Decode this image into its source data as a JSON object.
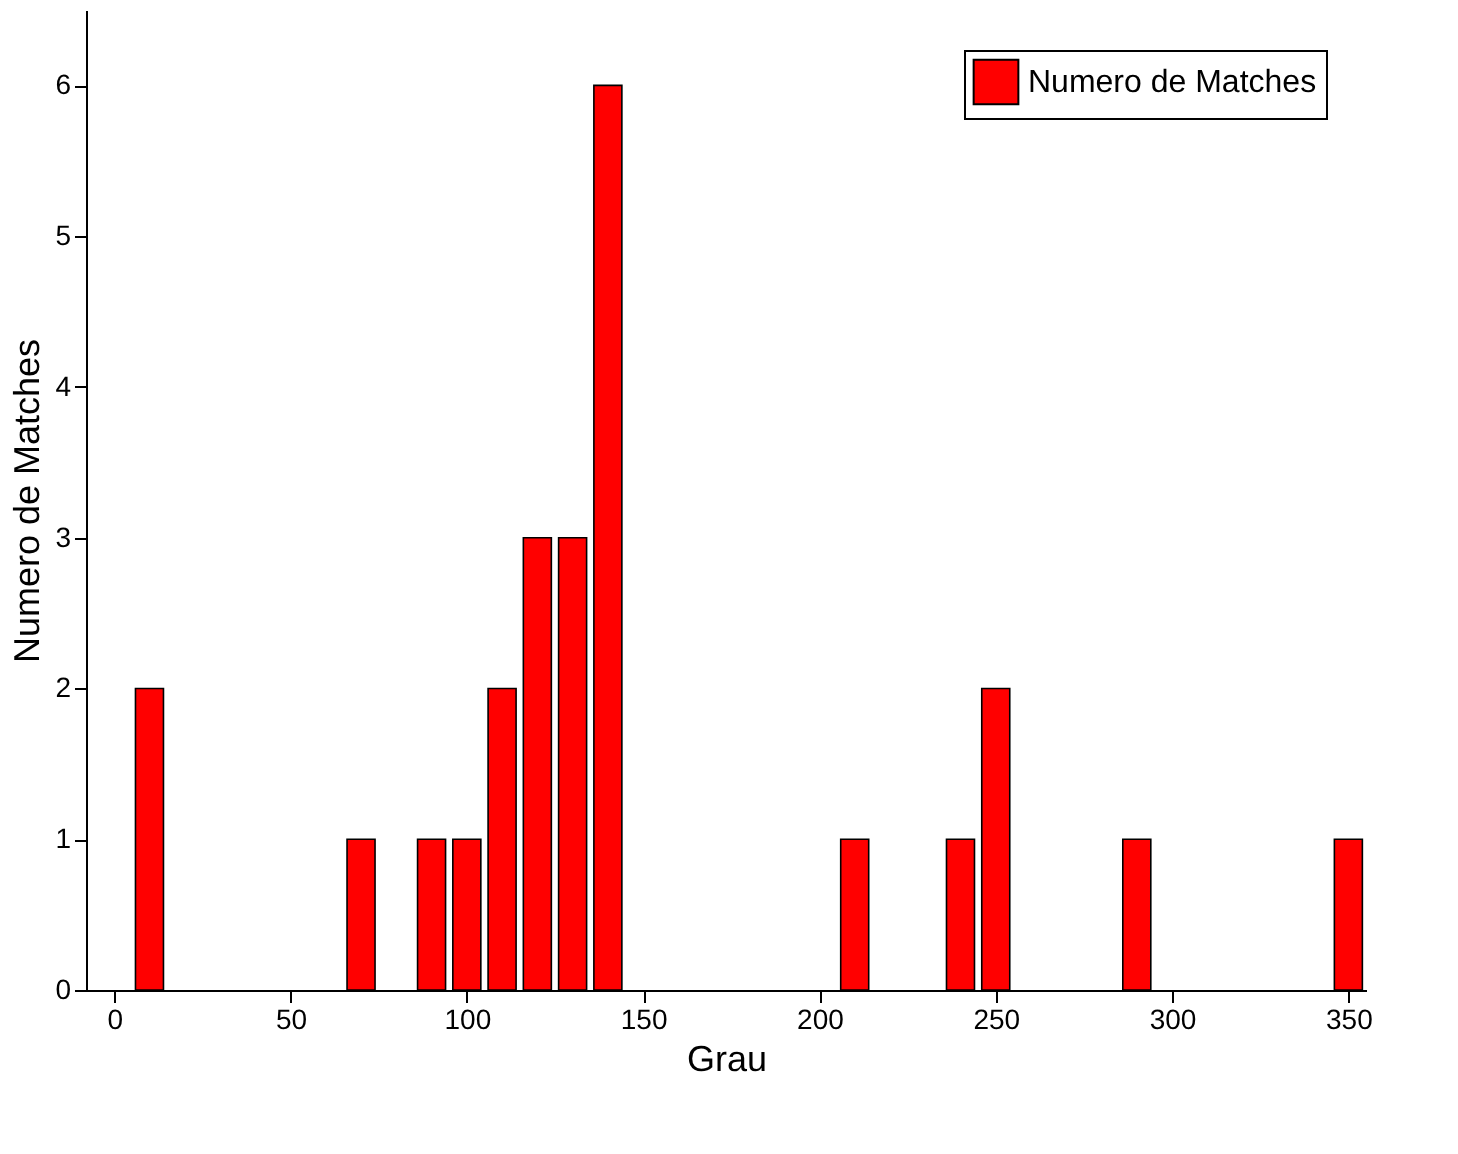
{
  "chart_data": {
    "type": "bar",
    "xlabel": "Grau",
    "ylabel": "Numero de Matches",
    "x": [
      10,
      70,
      90,
      100,
      110,
      120,
      130,
      140,
      210,
      240,
      250,
      290,
      350
    ],
    "series": [
      {
        "name": "Numero de Matches",
        "color": "#ff0000",
        "values": [
          2,
          1,
          1,
          1,
          2,
          3,
          3,
          6,
          1,
          1,
          2,
          1,
          1
        ]
      }
    ],
    "xlim": [
      -8,
      355
    ],
    "xticks": [
      0,
      50,
      100,
      150,
      200,
      250,
      300,
      350
    ],
    "ylim": [
      0,
      6.5
    ],
    "yticks": [
      0,
      1,
      2,
      3,
      4,
      5,
      6
    ],
    "grid": false,
    "legend": "top right"
  }
}
